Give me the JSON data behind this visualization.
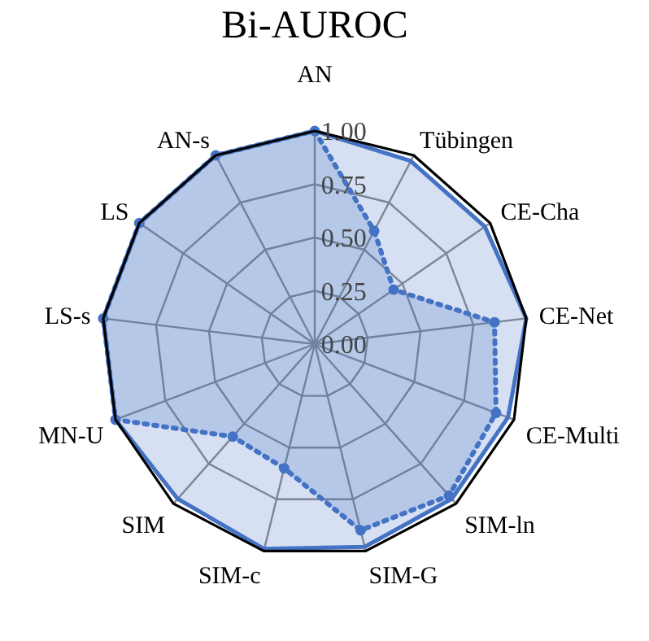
{
  "chart_data": {
    "type": "radar",
    "title": "Bi-AUROC",
    "categories": [
      "AN",
      "Tübingen",
      "CE-Cha",
      "CE-Net",
      "CE-Multi",
      "SIM-ln",
      "SIM-G",
      "SIM-c",
      "SIM",
      "MN-U",
      "LS-s",
      "LS",
      "AN-s"
    ],
    "ylim": [
      0,
      1
    ],
    "yticks": [
      {
        "value": 0,
        "label": "0.00"
      },
      {
        "value": 0.25,
        "label": "0.25"
      },
      {
        "value": 0.5,
        "label": "0.50"
      },
      {
        "value": 0.75,
        "label": "0.75"
      },
      {
        "value": 1,
        "label": "1.00"
      }
    ],
    "grid": true,
    "series": [
      {
        "color": "#4472c4",
        "line_style": "solid",
        "marker": "none",
        "values": [
          1.0,
          0.97,
          0.97,
          1.0,
          0.97,
          0.97,
          0.98,
          0.99,
          0.97,
          1.0,
          1.0,
          1.0,
          1.0
        ]
      },
      {
        "color": "#4472c4",
        "line_style": "dotted",
        "marker": "circle",
        "values": [
          1.0,
          0.6,
          0.45,
          0.85,
          0.91,
          0.95,
          0.9,
          0.6,
          0.58,
          1.0,
          1.0,
          1.0,
          1.0
        ]
      }
    ]
  }
}
